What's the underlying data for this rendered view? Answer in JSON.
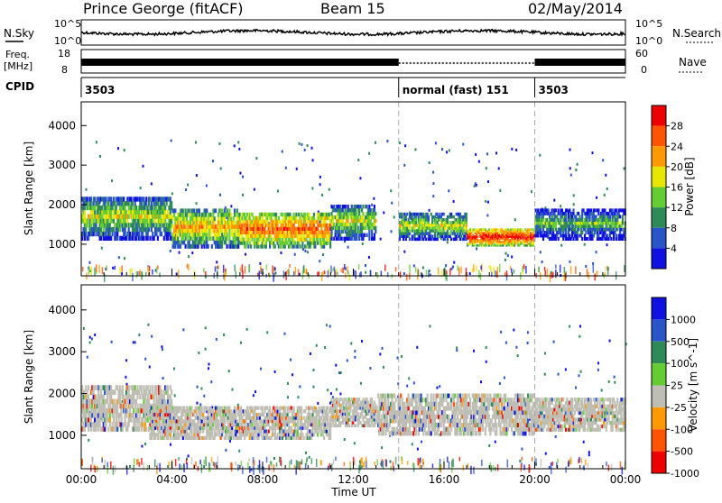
{
  "header": {
    "station": "Prince George (fitACF)",
    "beam": "Beam 15",
    "date": "02/May/2014"
  },
  "strips": {
    "nsky_label": "N.Sky",
    "nsky_top": "10^5",
    "nsky_bottom": "10^0",
    "nsearch_label": "N.Search",
    "nsearch_top": "10^5",
    "nsearch_bottom": "10^0",
    "freq_label": "Freq.",
    "freq_unit": "[MHz]",
    "freq_top": "18",
    "freq_bottom": "8",
    "nave_label": "Nave",
    "nave_top": "60",
    "nave_bottom": "0",
    "cpid_label": "CPID",
    "cpid_segments": [
      {
        "label": "3503",
        "start_h": 0,
        "end_h": 14
      },
      {
        "label": "normal (fast) 151",
        "start_h": 14,
        "end_h": 20
      },
      {
        "label": "3503",
        "start_h": 20,
        "end_h": 24
      }
    ]
  },
  "colors": {
    "power": [
      "#1010e0",
      "#2a55c8",
      "#2e8b57",
      "#66cc33",
      "#e6e600",
      "#ff9900",
      "#ff5500",
      "#ee0000"
    ],
    "velocity": [
      "#1010e0",
      "#2a55c8",
      "#2e8b57",
      "#66cc33",
      "#bebeb4",
      "#ff9900",
      "#ff5500",
      "#ee0000"
    ],
    "gs": "#bebeb4"
  },
  "chart_data": [
    {
      "type": "heatmap",
      "panel": "power",
      "ylabel": "Slant Range [km]",
      "colorbar_label": "Power [dB]",
      "colorbar_ticks": [
        "4",
        "8",
        "12",
        "16",
        "20",
        "24",
        "28"
      ],
      "xlim": [
        0,
        24
      ],
      "ylim": [
        200,
        4600
      ],
      "yticks": [
        "1000",
        "2000",
        "3000",
        "4000"
      ],
      "xticks": [
        "00:00",
        "04:00",
        "08:00",
        "12:00",
        "16:00",
        "20:00",
        "00:00"
      ],
      "regions": [
        {
          "t0": 0,
          "t1": 4,
          "r0": 1100,
          "r1": 2200,
          "level": 4
        },
        {
          "t0": 4,
          "t1": 7,
          "r0": 900,
          "r1": 1900,
          "level": 5
        },
        {
          "t0": 7,
          "t1": 11,
          "r0": 900,
          "r1": 1800,
          "level": 6
        },
        {
          "t0": 11,
          "t1": 13,
          "r0": 1100,
          "r1": 2000,
          "level": 4
        },
        {
          "t0": 14,
          "t1": 17,
          "r0": 1100,
          "r1": 1800,
          "level": 4
        },
        {
          "t0": 17,
          "t1": 20,
          "r0": 950,
          "r1": 1400,
          "level": 7
        },
        {
          "t0": 20,
          "t1": 24,
          "r0": 1100,
          "r1": 1900,
          "level": 3
        }
      ]
    },
    {
      "type": "heatmap",
      "panel": "velocity",
      "ylabel": "Slant Range [km]",
      "colorbar_label": "Velocity [m s^-1]",
      "colorbar_ticks": [
        "1000",
        "500",
        "100",
        "25",
        "-25",
        "-100",
        "-500",
        "-1000"
      ],
      "xlim": [
        0,
        24
      ],
      "ylim": [
        200,
        4600
      ],
      "yticks": [
        "1000",
        "2000",
        "3000",
        "4000"
      ],
      "xticks": [
        "00:00",
        "04:00",
        "08:00",
        "12:00",
        "16:00",
        "20:00",
        "00:00"
      ],
      "xlabel": "Time UT",
      "regions": [
        {
          "t0": 0,
          "t1": 4,
          "r0": 1100,
          "r1": 2200,
          "level": 4
        },
        {
          "t0": 3,
          "t1": 11,
          "r0": 900,
          "r1": 1700,
          "level": 5
        },
        {
          "t0": 11,
          "t1": 13,
          "r0": 1200,
          "r1": 1900,
          "level": 5
        },
        {
          "t0": 13,
          "t1": 20,
          "r0": 1000,
          "r1": 2000,
          "level": 4
        },
        {
          "t0": 20,
          "t1": 24,
          "r0": 1100,
          "r1": 1900,
          "level": 4
        }
      ]
    }
  ]
}
